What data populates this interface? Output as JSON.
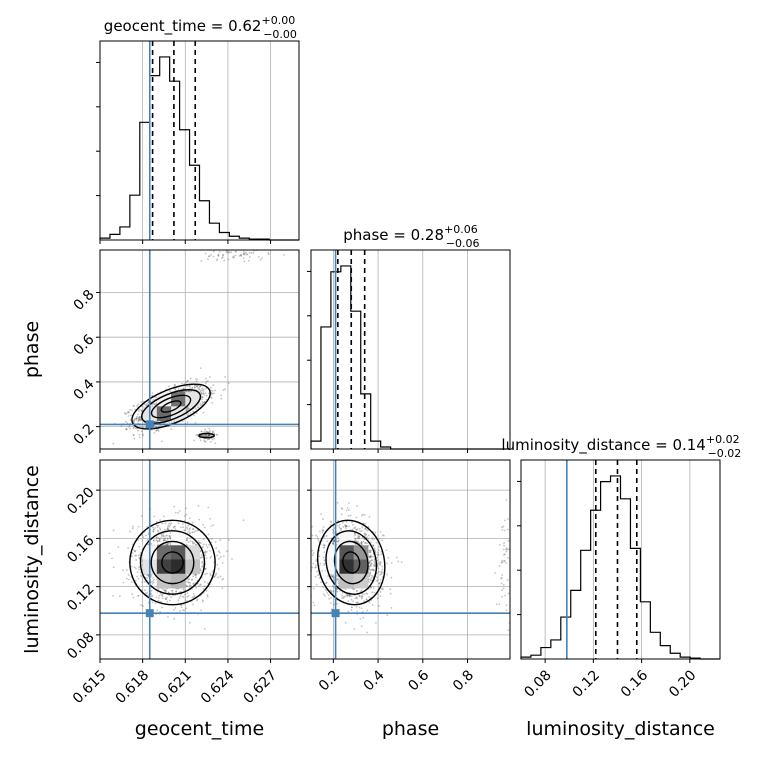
{
  "chart_data": {
    "type": "corner-plot",
    "parameters": [
      "geocent_time",
      "phase",
      "luminosity_distance"
    ],
    "truths": {
      "geocent_time": 0.6185,
      "phase": 0.21,
      "luminosity_distance": 0.098
    },
    "truth_color": "#4682b4",
    "ranges": {
      "geocent_time": [
        0.615,
        0.629
      ],
      "phase": [
        0.1,
        0.99
      ],
      "luminosity_distance": [
        0.06,
        0.225
      ]
    },
    "ticks": {
      "geocent_time": {
        "values": [
          0.615,
          0.618,
          0.621,
          0.624,
          0.627
        ],
        "labels": [
          "0.615",
          "0.618",
          "0.621",
          "0.624",
          "0.627"
        ]
      },
      "phase": {
        "values": [
          0.2,
          0.4,
          0.6,
          0.8
        ],
        "labels": [
          "0.2",
          "0.4",
          "0.6",
          "0.8"
        ]
      },
      "luminosity_distance": {
        "values": [
          0.08,
          0.12,
          0.16,
          0.2
        ],
        "labels": [
          "0.08",
          "0.12",
          "0.16",
          "0.20"
        ]
      }
    },
    "axis_labels": {
      "geocent_time": "geocent_time",
      "phase": "phase",
      "luminosity_distance": "luminosity_distance"
    },
    "diag_titles": [
      {
        "param": "geocent_time",
        "prefix": "geocent_time = 0.62",
        "sup": "+0.00",
        "sub": "−0.00"
      },
      {
        "param": "phase",
        "prefix": "phase = 0.28",
        "sup": "+0.06",
        "sub": "−0.06"
      },
      {
        "param": "luminosity_distance",
        "prefix": "luminosity_distance = 0.14",
        "sup": "+0.02",
        "sub": "−0.02"
      }
    ],
    "quantiles": {
      "geocent_time": [
        0.6187,
        0.6202,
        0.6217
      ],
      "phase": [
        0.22,
        0.28,
        0.34
      ],
      "luminosity_distance": [
        0.122,
        0.14,
        0.156
      ]
    },
    "histograms": {
      "geocent_time": {
        "edges": [
          0.615,
          0.6157,
          0.6164,
          0.6171,
          0.6178,
          0.6185,
          0.6192,
          0.6199,
          0.6206,
          0.6213,
          0.622,
          0.6227,
          0.6234,
          0.6241,
          0.6248,
          0.6255,
          0.6262,
          0.6269,
          0.6276,
          0.6283,
          0.629
        ],
        "counts": [
          1,
          3,
          7,
          24,
          63,
          88,
          98,
          85,
          59,
          40,
          21,
          9,
          4,
          2,
          1,
          0.5,
          0.5,
          0,
          0,
          0
        ]
      },
      "phase": {
        "edges": [
          0.1,
          0.1445,
          0.189,
          0.2335,
          0.278,
          0.3225,
          0.367,
          0.4115,
          0.456,
          0.5005,
          0.545,
          0.5895,
          0.634,
          0.6785,
          0.723,
          0.7675,
          0.812,
          0.8565,
          0.901,
          0.9455,
          0.99
        ],
        "counts": [
          4,
          62,
          90,
          93,
          70,
          28,
          4,
          1,
          0,
          0,
          0,
          0,
          0,
          0,
          0,
          0,
          0,
          0,
          0,
          0
        ]
      },
      "luminosity_distance": {
        "edges": [
          0.06,
          0.06825,
          0.0765,
          0.08475,
          0.093,
          0.10125,
          0.1095,
          0.11775,
          0.126,
          0.13425,
          0.1425,
          0.15075,
          0.159,
          0.16725,
          0.1755,
          0.18375,
          0.192,
          0.20025,
          0.2085,
          0.21675,
          0.225
        ],
        "counts": [
          1,
          2,
          6,
          10,
          22,
          36,
          57,
          78,
          93,
          96,
          84,
          58,
          30,
          14,
          7,
          3,
          1,
          0.5,
          0,
          0
        ]
      }
    },
    "panels_2d": [
      {
        "x": "geocent_time",
        "y": "phase",
        "mode": {
          "x": 0.62,
          "y": 0.29,
          "sx": 0.0011,
          "sy": 0.04,
          "rho": 0.6
        },
        "satellites": [
          {
            "x": 0.6225,
            "y": 0.16,
            "sx": 0.0003,
            "sy": 0.012,
            "w": 0.08
          },
          {
            "x": 0.6245,
            "y": 0.97,
            "sx": 0.0012,
            "sy": 0.02,
            "w": 0.05
          }
        ]
      },
      {
        "x": "geocent_time",
        "y": "luminosity_distance",
        "mode": {
          "x": 0.6201,
          "y": 0.14,
          "sx": 0.0012,
          "sy": 0.014,
          "rho": 0.0
        },
        "satellites": []
      },
      {
        "x": "phase",
        "y": "luminosity_distance",
        "mode": {
          "x": 0.28,
          "y": 0.14,
          "sx": 0.06,
          "sy": 0.014,
          "rho": -0.1
        },
        "satellites": [
          {
            "x": 0.97,
            "y": 0.14,
            "sx": 0.02,
            "sy": 0.02,
            "w": 0.04
          }
        ]
      }
    ],
    "contour_levels_sigma": [
      0.5,
      1.0,
      1.5,
      2.0
    ],
    "grid": true,
    "legend": "none"
  }
}
